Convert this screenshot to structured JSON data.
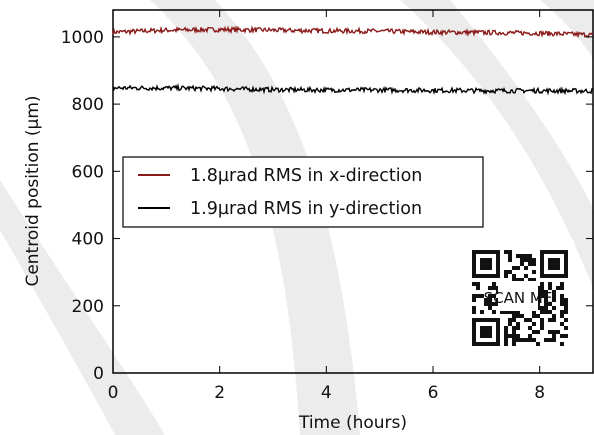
{
  "chart_data": {
    "type": "line",
    "title": "",
    "xlabel": "Time (hours)",
    "ylabel": "Centroid position (µm)",
    "xlim": [
      0,
      9
    ],
    "ylim": [
      0,
      1080
    ],
    "xticks": [
      0,
      2,
      4,
      6,
      8
    ],
    "yticks": [
      0,
      200,
      400,
      600,
      800,
      1000
    ],
    "grid": false,
    "legend_position": "center-left",
    "series": [
      {
        "name": "1.8µrad RMS in x-direction",
        "color": "#8b1a1a",
        "x": [
          0,
          1,
          2,
          3,
          4,
          5,
          6,
          7,
          8,
          9
        ],
        "y": [
          1014,
          1020,
          1022,
          1020,
          1018,
          1017,
          1014,
          1013,
          1011,
          1006
        ]
      },
      {
        "name": "1.9µrad RMS in y-direction",
        "color": "#000000",
        "x": [
          0,
          1,
          2,
          3,
          4,
          5,
          6,
          7,
          8,
          9
        ],
        "y": [
          848,
          848,
          846,
          843,
          842,
          842,
          841,
          840,
          840,
          839
        ]
      }
    ],
    "overlay": {
      "qr_code_text": "SCAN ME"
    }
  }
}
